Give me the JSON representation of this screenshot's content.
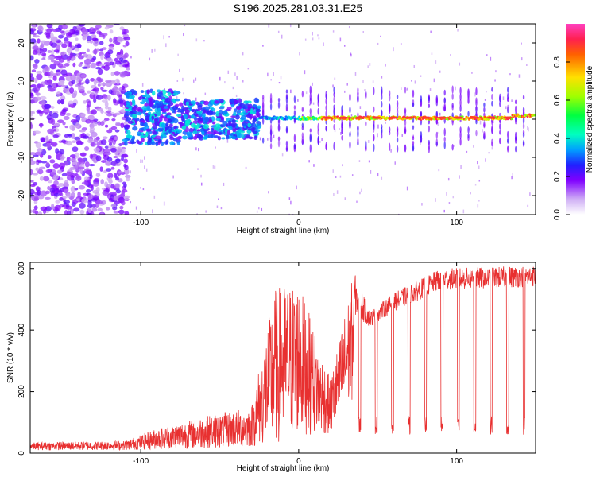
{
  "title": "S196.2025.281.03.31.E25",
  "chart_data": [
    {
      "type": "heatmap",
      "xlabel": "Height of straight line (km)",
      "ylabel": "Frequency (Hz)",
      "xlim": [
        -170,
        150
      ],
      "ylim": [
        -25,
        25
      ],
      "x_ticks": [
        -100,
        0,
        100
      ],
      "y_ticks": [
        -20,
        -10,
        0,
        10,
        20
      ],
      "x_tick_labels": [
        "-100",
        "0",
        "100"
      ],
      "y_tick_labels": [
        "-20",
        "-10",
        "0",
        "10",
        "20"
      ],
      "description_regions": [
        {
          "x_range": [
            -170,
            -110
          ],
          "kind": "noise",
          "note": "scattered low-amplitude purple speckle"
        },
        {
          "x_range": [
            -110,
            -25
          ],
          "kind": "diffuse",
          "center_hz": 0
        },
        {
          "x_range": [
            -25,
            150
          ],
          "kind": "line",
          "center_hz": 0.5
        }
      ],
      "colorbar": {
        "label": "Normalized spectral amplitude",
        "range": [
          0,
          1
        ],
        "ticks": [
          0.0,
          0.2,
          0.4,
          0.6,
          0.8
        ],
        "tick_labels": [
          "0.0",
          "0.2",
          "0.4",
          "0.6",
          "0.8"
        ],
        "colors": [
          "#ffffff",
          "#c8a0f0",
          "#8000ff",
          "#0040ff",
          "#00c0ff",
          "#00ff80",
          "#60ff00",
          "#ffff00",
          "#ff8000",
          "#ff2040",
          "#ff40c0"
        ]
      }
    },
    {
      "type": "line",
      "xlabel": "Height of straight line (km)",
      "ylabel": "SNR (10 * v/v)",
      "xlim": [
        -170,
        150
      ],
      "ylim": [
        0,
        620
      ],
      "x_ticks": [
        -100,
        0,
        100
      ],
      "y_ticks": [
        0,
        200,
        400,
        600
      ],
      "x_tick_labels": [
        "-100",
        "0",
        "100"
      ],
      "y_tick_labels": [
        "0",
        "200",
        "400",
        "600"
      ],
      "line_color": "#e83030",
      "envelope": [
        {
          "x": -170,
          "base": 20,
          "peak": 35
        },
        {
          "x": -110,
          "base": 20,
          "peak": 40
        },
        {
          "x": -90,
          "base": 25,
          "peak": 80
        },
        {
          "x": -60,
          "base": 30,
          "peak": 120
        },
        {
          "x": -30,
          "base": 40,
          "peak": 150
        },
        {
          "x": -15,
          "base": 60,
          "peak": 540
        },
        {
          "x": 0,
          "base": 150,
          "peak": 560
        },
        {
          "x": 20,
          "base": 150,
          "peak": 240
        },
        {
          "x": 35,
          "base": 450,
          "peak": 590
        },
        {
          "x": 45,
          "base": 410,
          "peak": 460
        },
        {
          "x": 60,
          "base": 460,
          "peak": 520
        },
        {
          "x": 90,
          "base": 530,
          "peak": 600
        },
        {
          "x": 150,
          "base": 540,
          "peak": 610
        }
      ]
    }
  ]
}
